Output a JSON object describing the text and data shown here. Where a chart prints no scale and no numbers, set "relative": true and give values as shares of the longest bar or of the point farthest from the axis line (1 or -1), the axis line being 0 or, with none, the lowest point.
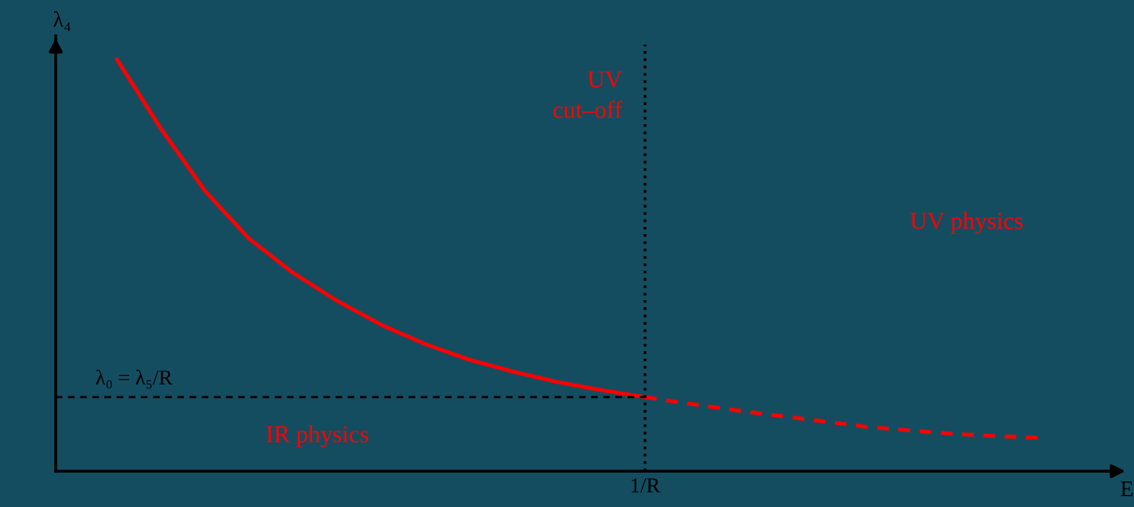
{
  "chart_data": {
    "type": "line",
    "relative": true,
    "xlabel": "E",
    "ylabel": "λ₄",
    "categories": [
      null,
      null,
      null,
      null,
      null,
      null,
      null,
      null,
      null,
      null,
      null,
      null,
      null,
      null,
      null,
      null,
      null,
      null,
      null,
      null,
      null,
      null
    ],
    "series": [
      {
        "color": "#ff0000",
        "line_style": "solid",
        "values": [
          1.0,
          0.832,
          0.681,
          0.565,
          0.482,
          0.414,
          0.356,
          0.309,
          0.271,
          0.242,
          0.217,
          0.197,
          0.18,
          null,
          null,
          null,
          null,
          null,
          null,
          null,
          null,
          null
        ]
      },
      {
        "color": "#ff0000",
        "line_style": "dashed",
        "values": [
          null,
          null,
          null,
          null,
          null,
          null,
          null,
          null,
          null,
          null,
          null,
          null,
          0.18,
          0.164,
          0.149,
          0.135,
          0.122,
          0.108,
          0.099,
          0.091,
          0.085,
          0.081
        ]
      }
    ],
    "ref_lines": [
      {
        "axis": "y",
        "value": 0.18,
        "label": "λ₀ = λ₅/R",
        "color": "#000000",
        "line_style": "dashed"
      },
      {
        "axis": "x",
        "label": "1/R",
        "color": "#000000",
        "line_style": "dotted"
      }
    ],
    "annotations": [
      "UV\ncut–off",
      "UV physics",
      "IR physics"
    ]
  }
}
